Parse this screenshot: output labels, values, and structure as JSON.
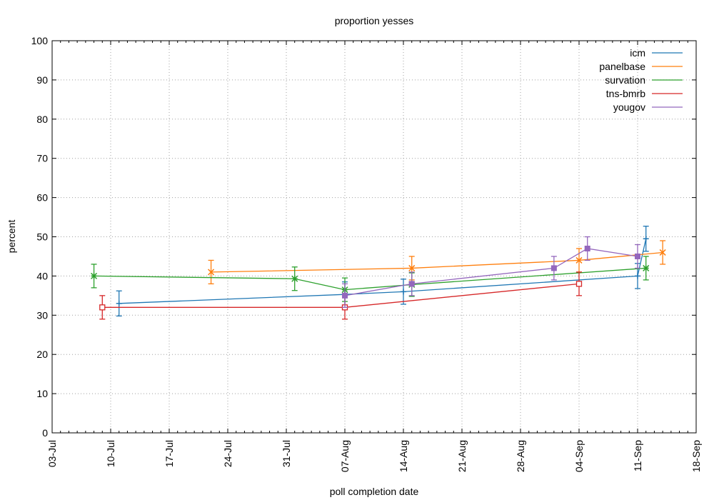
{
  "chart_data": {
    "type": "line",
    "title": "proportion yesses",
    "xlabel": "poll completion date",
    "ylabel": "percent",
    "xlim": [
      "2014-07-03",
      "2014-09-18"
    ],
    "ylim": [
      0,
      100
    ],
    "x_tick_labels": [
      "03-Jul",
      "10-Jul",
      "17-Jul",
      "24-Jul",
      "31-Jul",
      "07-Aug",
      "14-Aug",
      "21-Aug",
      "28-Aug",
      "04-Sep",
      "11-Sep",
      "18-Sep"
    ],
    "y_ticks": [
      0,
      10,
      20,
      30,
      40,
      50,
      60,
      70,
      80,
      90,
      100
    ],
    "grid": true,
    "legend_position": "top-right",
    "error_bars": true,
    "series": [
      {
        "name": "icm",
        "color": "#1f77b4",
        "marker": "plus",
        "points": [
          {
            "x": "2014-07-11",
            "y": 33,
            "err": 3.2
          },
          {
            "x": "2014-08-07",
            "y": 35.3,
            "err": 3.2
          },
          {
            "x": "2014-08-14",
            "y": 36,
            "err": 3.2
          },
          {
            "x": "2014-09-11",
            "y": 40,
            "err": 3.2
          },
          {
            "x": "2014-09-12",
            "y": 49.5,
            "err": 3.2
          }
        ]
      },
      {
        "name": "panelbase",
        "color": "#ff7f0e",
        "marker": "x",
        "points": [
          {
            "x": "2014-07-22",
            "y": 41,
            "err": 3
          },
          {
            "x": "2014-08-15",
            "y": 42,
            "err": 3
          },
          {
            "x": "2014-09-04",
            "y": 44,
            "err": 3
          },
          {
            "x": "2014-09-14",
            "y": 46,
            "err": 3
          }
        ]
      },
      {
        "name": "survation",
        "color": "#2ca02c",
        "marker": "asterisk",
        "points": [
          {
            "x": "2014-07-08",
            "y": 40,
            "err": 3
          },
          {
            "x": "2014-08-01",
            "y": 39.3,
            "err": 3
          },
          {
            "x": "2014-08-07",
            "y": 36.5,
            "err": 3
          },
          {
            "x": "2014-08-15",
            "y": 37.8,
            "err": 3
          },
          {
            "x": "2014-09-12",
            "y": 42,
            "err": 3
          }
        ]
      },
      {
        "name": "tns-bmrb",
        "color": "#d62728",
        "marker": "square-open",
        "points": [
          {
            "x": "2014-07-09",
            "y": 32,
            "err": 3
          },
          {
            "x": "2014-08-07",
            "y": 32,
            "err": 3
          },
          {
            "x": "2014-09-04",
            "y": 38,
            "err": 3
          }
        ]
      },
      {
        "name": "yougov",
        "color": "#9467bd",
        "marker": "square-filled",
        "points": [
          {
            "x": "2014-08-07",
            "y": 35,
            "err": 3
          },
          {
            "x": "2014-08-15",
            "y": 38,
            "err": 3
          },
          {
            "x": "2014-09-01",
            "y": 42,
            "err": 3
          },
          {
            "x": "2014-09-05",
            "y": 47,
            "err": 3
          },
          {
            "x": "2014-09-11",
            "y": 45,
            "err": 3
          }
        ]
      }
    ]
  }
}
